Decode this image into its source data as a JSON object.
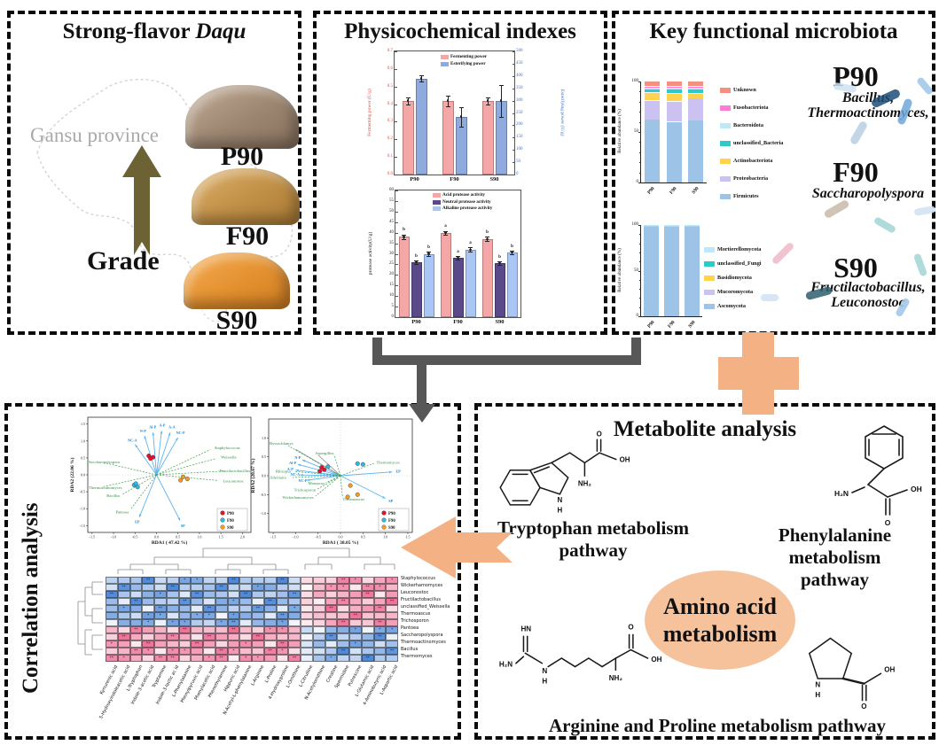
{
  "colors": {
    "accent_orange": "#F4B183",
    "arrow_gray": "#575757",
    "olive_arrow": "#6C6233"
  },
  "daqu_panel": {
    "title_prefix": "Strong-flavor ",
    "title_italic": "Daqu",
    "map_label": "Gansu province",
    "grade_label": "Grade",
    "bricks": [
      "P90",
      "F90",
      "S90"
    ]
  },
  "physico_panel": {
    "title": "Physicochemical indexes"
  },
  "microbiota_panel": {
    "title": "Key functional microbiota",
    "groups": [
      {
        "name": "P90",
        "taxa_lines": [
          "Bacillus,",
          "Thermoactinomyces,"
        ]
      },
      {
        "name": "F90",
        "taxa_lines": [
          "Saccharopolyspora"
        ]
      },
      {
        "name": "S90",
        "taxa_lines": [
          "Fructilactobacillus,",
          "Leuconostoc"
        ]
      }
    ]
  },
  "correlation_panel": {
    "title": "Correlation analysis"
  },
  "metabolite_panel": {
    "title": "Metabolite analysis",
    "tryptophan_caption": [
      "Tryptophan metabolism",
      "pathway"
    ],
    "phenylalanine_caption": [
      "Phenylalanine metabolism",
      "pathway"
    ],
    "argpro_caption": "Arginine and Proline metabolism pathway",
    "circle_lines": [
      "Amino acid",
      "metabolism"
    ],
    "atoms": {
      "trp": {
        "o": "O",
        "oh": "OH",
        "nh2": "NH₂",
        "n": "N",
        "h": "H"
      },
      "phe": {
        "h2n": "H₂N",
        "oh": "OH",
        "o": "O"
      },
      "arg": {
        "hn": "HN",
        "h2n": "H₂N",
        "n": "N",
        "h": "H",
        "o": "O",
        "oh": "OH",
        "nh2": "NH₂"
      },
      "pro": {
        "n": "N",
        "h": "H",
        "oh": "OH",
        "o": "O"
      }
    }
  },
  "chart_data": [
    {
      "id": "power",
      "type": "bar",
      "categories": [
        "P90",
        "F90",
        "S90"
      ],
      "series": [
        {
          "name": "Fermenting power",
          "color": "#F5A6A6",
          "axis": "left",
          "values": [
            0.42,
            0.42,
            0.42
          ],
          "errors": [
            0.02,
            0.03,
            0.02
          ]
        },
        {
          "name": "Esterifying power",
          "color": "#8FAADC",
          "axis": "right",
          "values": [
            390,
            235,
            300
          ],
          "errors": [
            12,
            40,
            65
          ]
        }
      ],
      "left_axis": {
        "label": "Fermenting power (U/g)",
        "min": 0,
        "max": 0.7,
        "tick_step": 0.1,
        "color": "#D9534F"
      },
      "right_axis": {
        "label": "Esterifying power (U/g)",
        "min": 0,
        "max": 500,
        "tick_step": 50,
        "color": "#4472C4"
      },
      "legend_position": "top-right"
    },
    {
      "id": "protease",
      "type": "bar",
      "categories": [
        "P90",
        "F90",
        "S90"
      ],
      "series": [
        {
          "name": "Acid protease activity",
          "color": "#F5A6A6",
          "values": [
            38,
            40,
            37
          ],
          "errors": [
            1.2,
            0.8,
            1.0
          ],
          "letters": [
            "b",
            "a",
            "b"
          ]
        },
        {
          "name": "Neutral protease activity",
          "color": "#5B4A8A",
          "values": [
            26,
            28,
            25.5
          ],
          "errors": [
            0.8,
            0.9,
            0.8
          ],
          "letters": [
            "b",
            "a",
            "b"
          ]
        },
        {
          "name": "Alkaline protease activity",
          "color": "#A9C6F5",
          "values": [
            30,
            32,
            30.5
          ],
          "errors": [
            0.9,
            1.0,
            0.8
          ],
          "letters": [
            "b",
            "a",
            "b"
          ]
        }
      ],
      "left_axis": {
        "label": "protease activity(U/g)",
        "min": 0,
        "max": 60,
        "tick_step": 5,
        "color": "#222222"
      }
    },
    {
      "id": "bacteria",
      "type": "stacked",
      "categories": [
        "P90",
        "F90",
        "S90"
      ],
      "y_label": "Relative abundance (%)",
      "ticks": [
        0,
        50,
        100
      ],
      "series": [
        {
          "name": "Firmicutes",
          "color": "#9DC3E6",
          "values": [
            62,
            60,
            61
          ]
        },
        {
          "name": "Proteobacteria",
          "color": "#CCC2F2",
          "values": [
            19,
            20,
            22
          ]
        },
        {
          "name": "Actinobacteriota",
          "color": "#FFD34D",
          "values": [
            8,
            8,
            5
          ]
        },
        {
          "name": "unclassified_Bacteria",
          "color": "#2EC9C9",
          "values": [
            3,
            4,
            4
          ]
        },
        {
          "name": "Bacteroidota",
          "color": "#BDE8F5",
          "values": [
            2,
            2,
            2
          ]
        },
        {
          "name": "Fusobacteriota",
          "color": "#FF7ED4",
          "values": [
            1,
            1,
            1
          ]
        },
        {
          "name": "Unknown",
          "color": "#F4907F",
          "values": [
            5,
            5,
            5
          ]
        }
      ],
      "legend_top_to_bottom": [
        "Unknown",
        "Fusobacteriota",
        "Bacteroidota",
        "unclassified_Bacteria",
        "Actinobacteriota",
        "Proteobacteria",
        "Firmicutes"
      ]
    },
    {
      "id": "fungi",
      "type": "stacked",
      "categories": [
        "P90",
        "F90",
        "S90"
      ],
      "y_label": "Relative abundance (%)",
      "ticks": [
        0,
        50,
        100
      ],
      "series": [
        {
          "name": "Ascomycota",
          "color": "#9DC3E6",
          "values": [
            99,
            98.5,
            99
          ]
        },
        {
          "name": "Mucoromycota",
          "color": "#CCC2F2",
          "values": [
            0.3,
            0.5,
            0.3
          ]
        },
        {
          "name": "Basidiomycota",
          "color": "#FFD34D",
          "values": [
            0.3,
            0.4,
            0.3
          ]
        },
        {
          "name": "unclassified_Fungi",
          "color": "#2EC9C9",
          "values": [
            0.2,
            0.3,
            0.2
          ]
        },
        {
          "name": "Mortierellomycota",
          "color": "#BDE8F5",
          "values": [
            0.2,
            0.3,
            0.2
          ]
        }
      ],
      "legend_top_to_bottom": [
        "Mortierellomycota",
        "unclassified_Fungi",
        "Basidiomycota",
        "Mucoromycota",
        "Ascomycota"
      ]
    },
    {
      "id": "rda1",
      "type": "scatter",
      "xlabel": "RDA1 ( 47.42 %)",
      "ylabel": "RDA2 (22.06 %)",
      "xlim": [
        -1.6,
        2.2
      ],
      "ylim": [
        -1.7,
        1.7
      ],
      "xticks": [
        -1.5,
        -1.0,
        -0.5,
        0.0,
        0.5,
        1.0,
        1.5,
        2.0
      ],
      "yticks": [
        -1.5,
        -1.0,
        -0.5,
        0.0,
        0.5,
        1.0,
        1.5
      ],
      "env_vectors": [
        {
          "label": "N-P",
          "x": -0.28,
          "y": 1.15
        },
        {
          "label": "Al-P",
          "x": -0.08,
          "y": 1.25
        },
        {
          "label": "A-P",
          "x": 0.12,
          "y": 1.3
        },
        {
          "label": "A-A",
          "x": 0.32,
          "y": 1.25
        },
        {
          "label": "NC-A",
          "x": -0.5,
          "y": 0.9
        },
        {
          "label": "NC-P",
          "x": 0.5,
          "y": 1.1
        },
        {
          "label": "EP",
          "x": -0.4,
          "y": -1.25
        },
        {
          "label": "SP",
          "x": 0.55,
          "y": -1.35
        }
      ],
      "taxa": [
        {
          "label": "Staphylococcus",
          "x": 1.35,
          "y": 0.8
        },
        {
          "label": "Weissella",
          "x": 1.5,
          "y": 0.52
        },
        {
          "label": "Fructilactobacillus",
          "x": 1.7,
          "y": 0.12
        },
        {
          "label": "Leuconostoc",
          "x": 1.55,
          "y": -0.18
        },
        {
          "label": "Saccharopolyspora",
          "x": -1.3,
          "y": 0.38
        },
        {
          "label": "Thermoactinomyces",
          "x": -1.35,
          "y": -0.38
        },
        {
          "label": "Bacillus",
          "x": -0.85,
          "y": -0.62
        },
        {
          "label": "Pantoea",
          "x": -0.65,
          "y": -1.1
        }
      ],
      "groups": [
        {
          "name": "P90",
          "color": "#E8112D",
          "points": [
            [
              -0.18,
              0.56
            ],
            [
              -0.08,
              0.52
            ],
            [
              -0.14,
              0.48
            ]
          ]
        },
        {
          "name": "F90",
          "color": "#35B6E0",
          "points": [
            [
              -0.52,
              -0.3
            ],
            [
              -0.44,
              -0.36
            ],
            [
              -0.48,
              -0.26
            ]
          ]
        },
        {
          "name": "S90",
          "color": "#F59A23",
          "points": [
            [
              0.62,
              -0.06
            ],
            [
              0.72,
              -0.12
            ],
            [
              0.56,
              -0.16
            ]
          ]
        }
      ]
    },
    {
      "id": "rda2",
      "type": "scatter",
      "xlabel": "RDA1 ( 38.05 %)",
      "ylabel": "RDA2 (20.67 %)",
      "xlim": [
        -1.6,
        1.6
      ],
      "ylim": [
        -1.5,
        1.5
      ],
      "xticks": [
        -1.5,
        -1.0,
        -0.5,
        0.0,
        0.5,
        1.0,
        1.5
      ],
      "yticks": [
        -1.0,
        -0.5,
        0.0,
        0.5,
        1.0
      ],
      "gray_vectors": [
        [
          -1.0,
          0.7
        ],
        [
          -0.5,
          0.55
        ]
      ],
      "env_vectors": [
        {
          "label": "N-P",
          "x": -0.85,
          "y": 0.42
        },
        {
          "label": "Al-P",
          "x": -0.95,
          "y": 0.3
        },
        {
          "label": "A-P",
          "x": -1.0,
          "y": 0.15
        },
        {
          "label": "NC-A",
          "x": -0.9,
          "y": 0.02
        },
        {
          "label": "NC-P",
          "x": -0.75,
          "y": -0.12
        },
        {
          "label": "EP",
          "x": 1.15,
          "y": 0.1
        },
        {
          "label": "SP",
          "x": 1.0,
          "y": -0.6
        }
      ],
      "taxa": [
        {
          "label": "Byssochlamys",
          "x": -1.25,
          "y": 0.85
        },
        {
          "label": "Aspergillus",
          "x": -0.15,
          "y": 0.6
        },
        {
          "label": "Thermomyces",
          "x": 0.8,
          "y": 0.35
        },
        {
          "label": "Rhizopus",
          "x": -1.1,
          "y": 0.12
        },
        {
          "label": "Alternaria",
          "x": -1.15,
          "y": -0.05
        },
        {
          "label": "Monascus",
          "x": -0.35,
          "y": -0.2
        },
        {
          "label": "Trichosporon",
          "x": -0.55,
          "y": -0.38
        },
        {
          "label": "Wickerhamomyces",
          "x": -0.6,
          "y": -0.58
        },
        {
          "label": "Thermoascus",
          "x": 0.05,
          "y": -0.62
        }
      ],
      "groups": [
        {
          "name": "P90",
          "color": "#E8112D",
          "points": [
            [
              -0.42,
              0.22
            ],
            [
              -0.36,
              0.16
            ],
            [
              -0.46,
              0.12
            ]
          ]
        },
        {
          "name": "F90",
          "color": "#35B6E0",
          "points": [
            [
              0.38,
              0.32
            ],
            [
              0.5,
              0.3
            ],
            [
              -0.28,
              0.24
            ]
          ]
        },
        {
          "name": "S90",
          "color": "#F59A23",
          "points": [
            [
              0.22,
              -0.26
            ],
            [
              0.38,
              -0.5
            ],
            [
              0.16,
              -0.56
            ]
          ]
        }
      ]
    },
    {
      "id": "heatmap",
      "type": "heatmap",
      "rows": [
        "Staphylococcus",
        "Wickerhamomyces",
        "Leuconostoc",
        "Fructilactobacillus",
        "unclassified_Weissella",
        "Thermoascus",
        "Trichosporon",
        "Pantoea",
        "Saccharopolyspora",
        "Thermoactinomyces",
        "Bacillus",
        "Thermomyces"
      ],
      "cols": [
        "Kynurenic acid",
        "5-Hydroxyindoleacetic acid",
        "L-Tryptophan",
        "Indole-3-acetic acid",
        "Tryptamine",
        "Indole-3-lactic ac id",
        "L-Phenylalanine",
        "Phenylpyruvic acid",
        "Phenylacetic acid",
        "Phenethylamine",
        "Hippuric acid",
        "N-Acetyl-L-phenylalanine",
        "L-Arginine",
        "L-Proline",
        "4-Hydroxyproline",
        "L-Ornithine",
        "L-Citrulline",
        "N-Acetylornithine",
        "Creatine",
        "Spermidine",
        "Putrescine",
        "L-Glutamic acid",
        "4-Aminobutyric acid",
        "L-Aspartic acid"
      ],
      "blocks": [
        {
          "rows": [
            0,
            6
          ],
          "cols": [
            0,
            15
          ],
          "value": -0.55
        },
        {
          "rows": [
            0,
            6
          ],
          "cols": [
            16,
            23
          ],
          "value": 0.6
        },
        {
          "rows": [
            7,
            11
          ],
          "cols": [
            0,
            15
          ],
          "value": 0.6
        },
        {
          "rows": [
            7,
            11
          ],
          "cols": [
            16,
            23
          ],
          "value": -0.55
        }
      ],
      "scale": {
        "negative": "#4A86D8",
        "positive": "#EE6E96"
      }
    }
  ]
}
